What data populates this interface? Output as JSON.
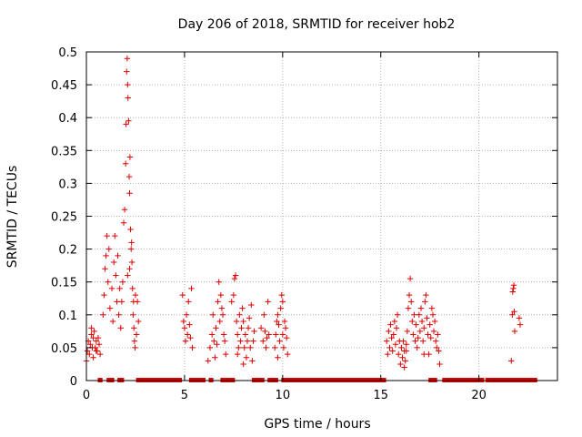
{
  "chart_data": {
    "type": "scatter",
    "title": "Day 206 of 2018, SRMTID for receiver hob2",
    "xlabel": "GPS time / hours",
    "ylabel": "SRMTID / TECUs",
    "xlim": [
      0,
      24
    ],
    "ylim": [
      0,
      0.5
    ],
    "x_ticks": [
      0,
      5,
      10,
      15,
      20
    ],
    "y_ticks": [
      0,
      0.05,
      0.1,
      0.15,
      0.2,
      0.25,
      0.3,
      0.35,
      0.4,
      0.45,
      0.5
    ],
    "x_tick_labels": [
      "0",
      "5",
      "10",
      "15",
      "20"
    ],
    "y_tick_labels": [
      "0",
      "0.05",
      "0.1",
      "0.15",
      "0.2",
      "0.25",
      "0.3",
      "0.35",
      "0.4",
      "0.45",
      "0.5"
    ],
    "grid": true,
    "marker": "+",
    "series": [
      {
        "name": "SRMTID",
        "color": "#dd0000",
        "points": [
          [
            0.0,
            0.03
          ],
          [
            0.05,
            0.045
          ],
          [
            0.1,
            0.06
          ],
          [
            0.15,
            0.04
          ],
          [
            0.2,
            0.055
          ],
          [
            0.25,
            0.07
          ],
          [
            0.3,
            0.05
          ],
          [
            0.35,
            0.065
          ],
          [
            0.4,
            0.075
          ],
          [
            0.45,
            0.05
          ],
          [
            0.5,
            0.06
          ],
          [
            0.55,
            0.045
          ],
          [
            0.6,
            0.065
          ],
          [
            0.65,
            0.055
          ],
          [
            0.7,
            0.04
          ],
          [
            0.25,
            0.08
          ],
          [
            0.35,
            0.035
          ],
          [
            0.5,
            0.045
          ],
          [
            0.85,
            0.1
          ],
          [
            0.9,
            0.13
          ],
          [
            0.95,
            0.17
          ],
          [
            1.0,
            0.19
          ],
          [
            1.05,
            0.22
          ],
          [
            1.1,
            0.15
          ],
          [
            1.15,
            0.2
          ],
          [
            1.2,
            0.11
          ],
          [
            1.3,
            0.14
          ],
          [
            1.35,
            0.09
          ],
          [
            1.4,
            0.18
          ],
          [
            1.45,
            0.22
          ],
          [
            1.5,
            0.16
          ],
          [
            1.55,
            0.12
          ],
          [
            1.6,
            0.19
          ],
          [
            1.65,
            0.1
          ],
          [
            1.7,
            0.14
          ],
          [
            1.75,
            0.08
          ],
          [
            1.8,
            0.12
          ],
          [
            1.85,
            0.15
          ],
          [
            1.9,
            0.24
          ],
          [
            1.95,
            0.26
          ],
          [
            2.0,
            0.33
          ],
          [
            2.02,
            0.39
          ],
          [
            2.05,
            0.47
          ],
          [
            2.08,
            0.49
          ],
          [
            2.1,
            0.45
          ],
          [
            2.12,
            0.43
          ],
          [
            2.15,
            0.395
          ],
          [
            2.18,
            0.31
          ],
          [
            2.2,
            0.285
          ],
          [
            2.22,
            0.34
          ],
          [
            2.25,
            0.23
          ],
          [
            2.28,
            0.2
          ],
          [
            2.3,
            0.21
          ],
          [
            2.32,
            0.18
          ],
          [
            2.35,
            0.14
          ],
          [
            2.38,
            0.1
          ],
          [
            2.4,
            0.12
          ],
          [
            2.42,
            0.08
          ],
          [
            2.45,
            0.06
          ],
          [
            2.48,
            0.05
          ],
          [
            2.5,
            0.13
          ],
          [
            2.55,
            0.07
          ],
          [
            2.6,
            0.12
          ],
          [
            2.65,
            0.09
          ],
          [
            2.2,
            0.17
          ],
          [
            2.1,
            0.16
          ],
          [
            4.9,
            0.13
          ],
          [
            4.95,
            0.09
          ],
          [
            5.0,
            0.08
          ],
          [
            5.05,
            0.06
          ],
          [
            5.1,
            0.1
          ],
          [
            5.15,
            0.07
          ],
          [
            5.2,
            0.12
          ],
          [
            5.25,
            0.085
          ],
          [
            5.3,
            0.065
          ],
          [
            5.35,
            0.14
          ],
          [
            5.4,
            0.05
          ],
          [
            6.2,
            0.03
          ],
          [
            6.3,
            0.05
          ],
          [
            6.4,
            0.07
          ],
          [
            6.45,
            0.1
          ],
          [
            6.5,
            0.06
          ],
          [
            6.6,
            0.08
          ],
          [
            6.7,
            0.12
          ],
          [
            6.75,
            0.15
          ],
          [
            6.8,
            0.09
          ],
          [
            6.85,
            0.13
          ],
          [
            6.9,
            0.11
          ],
          [
            6.95,
            0.1
          ],
          [
            7.0,
            0.07
          ],
          [
            7.05,
            0.06
          ],
          [
            7.1,
            0.04
          ],
          [
            6.55,
            0.035
          ],
          [
            6.65,
            0.055
          ],
          [
            7.4,
            0.12
          ],
          [
            7.5,
            0.13
          ],
          [
            7.55,
            0.155
          ],
          [
            7.6,
            0.16
          ],
          [
            7.65,
            0.09
          ],
          [
            7.7,
            0.07
          ],
          [
            7.75,
            0.05
          ],
          [
            7.8,
            0.1
          ],
          [
            7.85,
            0.06
          ],
          [
            7.9,
            0.08
          ],
          [
            7.95,
            0.11
          ],
          [
            8.0,
            0.09
          ],
          [
            8.05,
            0.05
          ],
          [
            8.1,
            0.07
          ],
          [
            8.15,
            0.035
          ],
          [
            8.2,
            0.06
          ],
          [
            8.25,
            0.08
          ],
          [
            8.3,
            0.095
          ],
          [
            8.35,
            0.05
          ],
          [
            8.4,
            0.115
          ],
          [
            8.45,
            0.03
          ],
          [
            8.5,
            0.06
          ],
          [
            8.55,
            0.075
          ],
          [
            7.7,
            0.04
          ],
          [
            8.0,
            0.025
          ],
          [
            8.9,
            0.08
          ],
          [
            9.0,
            0.06
          ],
          [
            9.05,
            0.1
          ],
          [
            9.1,
            0.075
          ],
          [
            9.15,
            0.05
          ],
          [
            9.2,
            0.065
          ],
          [
            9.25,
            0.12
          ],
          [
            9.3,
            0.07
          ],
          [
            9.6,
            0.05
          ],
          [
            9.65,
            0.07
          ],
          [
            9.7,
            0.09
          ],
          [
            9.75,
            0.1
          ],
          [
            9.8,
            0.085
          ],
          [
            9.85,
            0.06
          ],
          [
            9.9,
            0.11
          ],
          [
            9.95,
            0.13
          ],
          [
            10.0,
            0.07
          ],
          [
            10.05,
            0.05
          ],
          [
            10.1,
            0.09
          ],
          [
            10.15,
            0.08
          ],
          [
            10.2,
            0.065
          ],
          [
            10.25,
            0.04
          ],
          [
            9.75,
            0.035
          ],
          [
            10.0,
            0.12
          ],
          [
            15.3,
            0.06
          ],
          [
            15.35,
            0.04
          ],
          [
            15.4,
            0.075
          ],
          [
            15.45,
            0.05
          ],
          [
            15.5,
            0.085
          ],
          [
            15.55,
            0.065
          ],
          [
            15.6,
            0.045
          ],
          [
            15.65,
            0.07
          ],
          [
            15.7,
            0.09
          ],
          [
            15.75,
            0.055
          ],
          [
            15.8,
            0.08
          ],
          [
            15.85,
            0.1
          ],
          [
            15.9,
            0.04
          ],
          [
            15.95,
            0.06
          ],
          [
            16.0,
            0.025
          ],
          [
            16.05,
            0.05
          ],
          [
            16.1,
            0.035
          ],
          [
            16.15,
            0.06
          ],
          [
            16.2,
            0.045
          ],
          [
            16.25,
            0.03
          ],
          [
            16.3,
            0.055
          ],
          [
            16.35,
            0.075
          ],
          [
            16.4,
            0.11
          ],
          [
            16.45,
            0.13
          ],
          [
            16.5,
            0.155
          ],
          [
            16.55,
            0.12
          ],
          [
            16.6,
            0.09
          ],
          [
            16.65,
            0.07
          ],
          [
            16.7,
            0.1
          ],
          [
            16.75,
            0.06
          ],
          [
            16.8,
            0.085
          ],
          [
            16.85,
            0.05
          ],
          [
            16.9,
            0.065
          ],
          [
            16.95,
            0.1
          ],
          [
            17.0,
            0.075
          ],
          [
            17.05,
            0.11
          ],
          [
            17.1,
            0.09
          ],
          [
            17.15,
            0.06
          ],
          [
            17.2,
            0.08
          ],
          [
            17.25,
            0.12
          ],
          [
            17.3,
            0.13
          ],
          [
            17.35,
            0.095
          ],
          [
            17.4,
            0.07
          ],
          [
            17.45,
            0.04
          ],
          [
            17.5,
            0.085
          ],
          [
            17.55,
            0.065
          ],
          [
            17.6,
            0.11
          ],
          [
            17.65,
            0.1
          ],
          [
            17.7,
            0.075
          ],
          [
            17.75,
            0.09
          ],
          [
            17.8,
            0.06
          ],
          [
            17.85,
            0.05
          ],
          [
            17.9,
            0.07
          ],
          [
            17.95,
            0.045
          ],
          [
            18.0,
            0.025
          ],
          [
            16.2,
            0.02
          ],
          [
            16.3,
            0.045
          ],
          [
            17.2,
            0.04
          ],
          [
            21.65,
            0.03
          ],
          [
            21.7,
            0.1
          ],
          [
            21.72,
            0.135
          ],
          [
            21.75,
            0.14
          ],
          [
            21.78,
            0.145
          ],
          [
            21.8,
            0.105
          ],
          [
            21.82,
            0.075
          ],
          [
            22.05,
            0.095
          ],
          [
            22.1,
            0.085
          ]
        ]
      },
      {
        "name": "SRMTID zero",
        "color": "#dd0000",
        "x_ranges": [
          [
            0.65,
            0.75
          ],
          [
            1.1,
            1.35
          ],
          [
            1.65,
            1.85
          ],
          [
            2.6,
            4.8
          ],
          [
            5.3,
            6.0
          ],
          [
            6.3,
            6.4
          ],
          [
            6.9,
            7.5
          ],
          [
            8.5,
            9.0
          ],
          [
            9.3,
            9.7
          ],
          [
            10.0,
            15.2
          ],
          [
            17.5,
            17.8
          ],
          [
            18.2,
            20.2
          ],
          [
            20.4,
            22.9
          ]
        ],
        "y": 0
      }
    ]
  }
}
